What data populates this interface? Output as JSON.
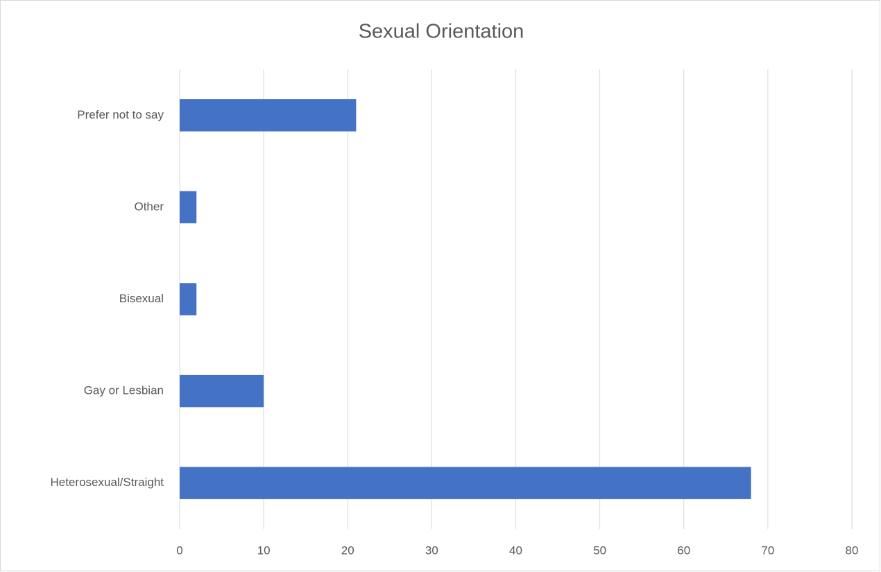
{
  "chart_data": {
    "type": "bar",
    "orientation": "horizontal",
    "title": "Sexual Orientation",
    "categories": [
      "Heterosexual/Straight",
      "Gay or Lesbian",
      "Bisexual",
      "Other",
      "Prefer not to say"
    ],
    "values": [
      68,
      10,
      2,
      2,
      21
    ],
    "color": "#4472c4",
    "xlim": [
      0,
      80
    ],
    "xticks": [
      0,
      10,
      20,
      30,
      40,
      50,
      60,
      70,
      80
    ],
    "grid": true
  }
}
